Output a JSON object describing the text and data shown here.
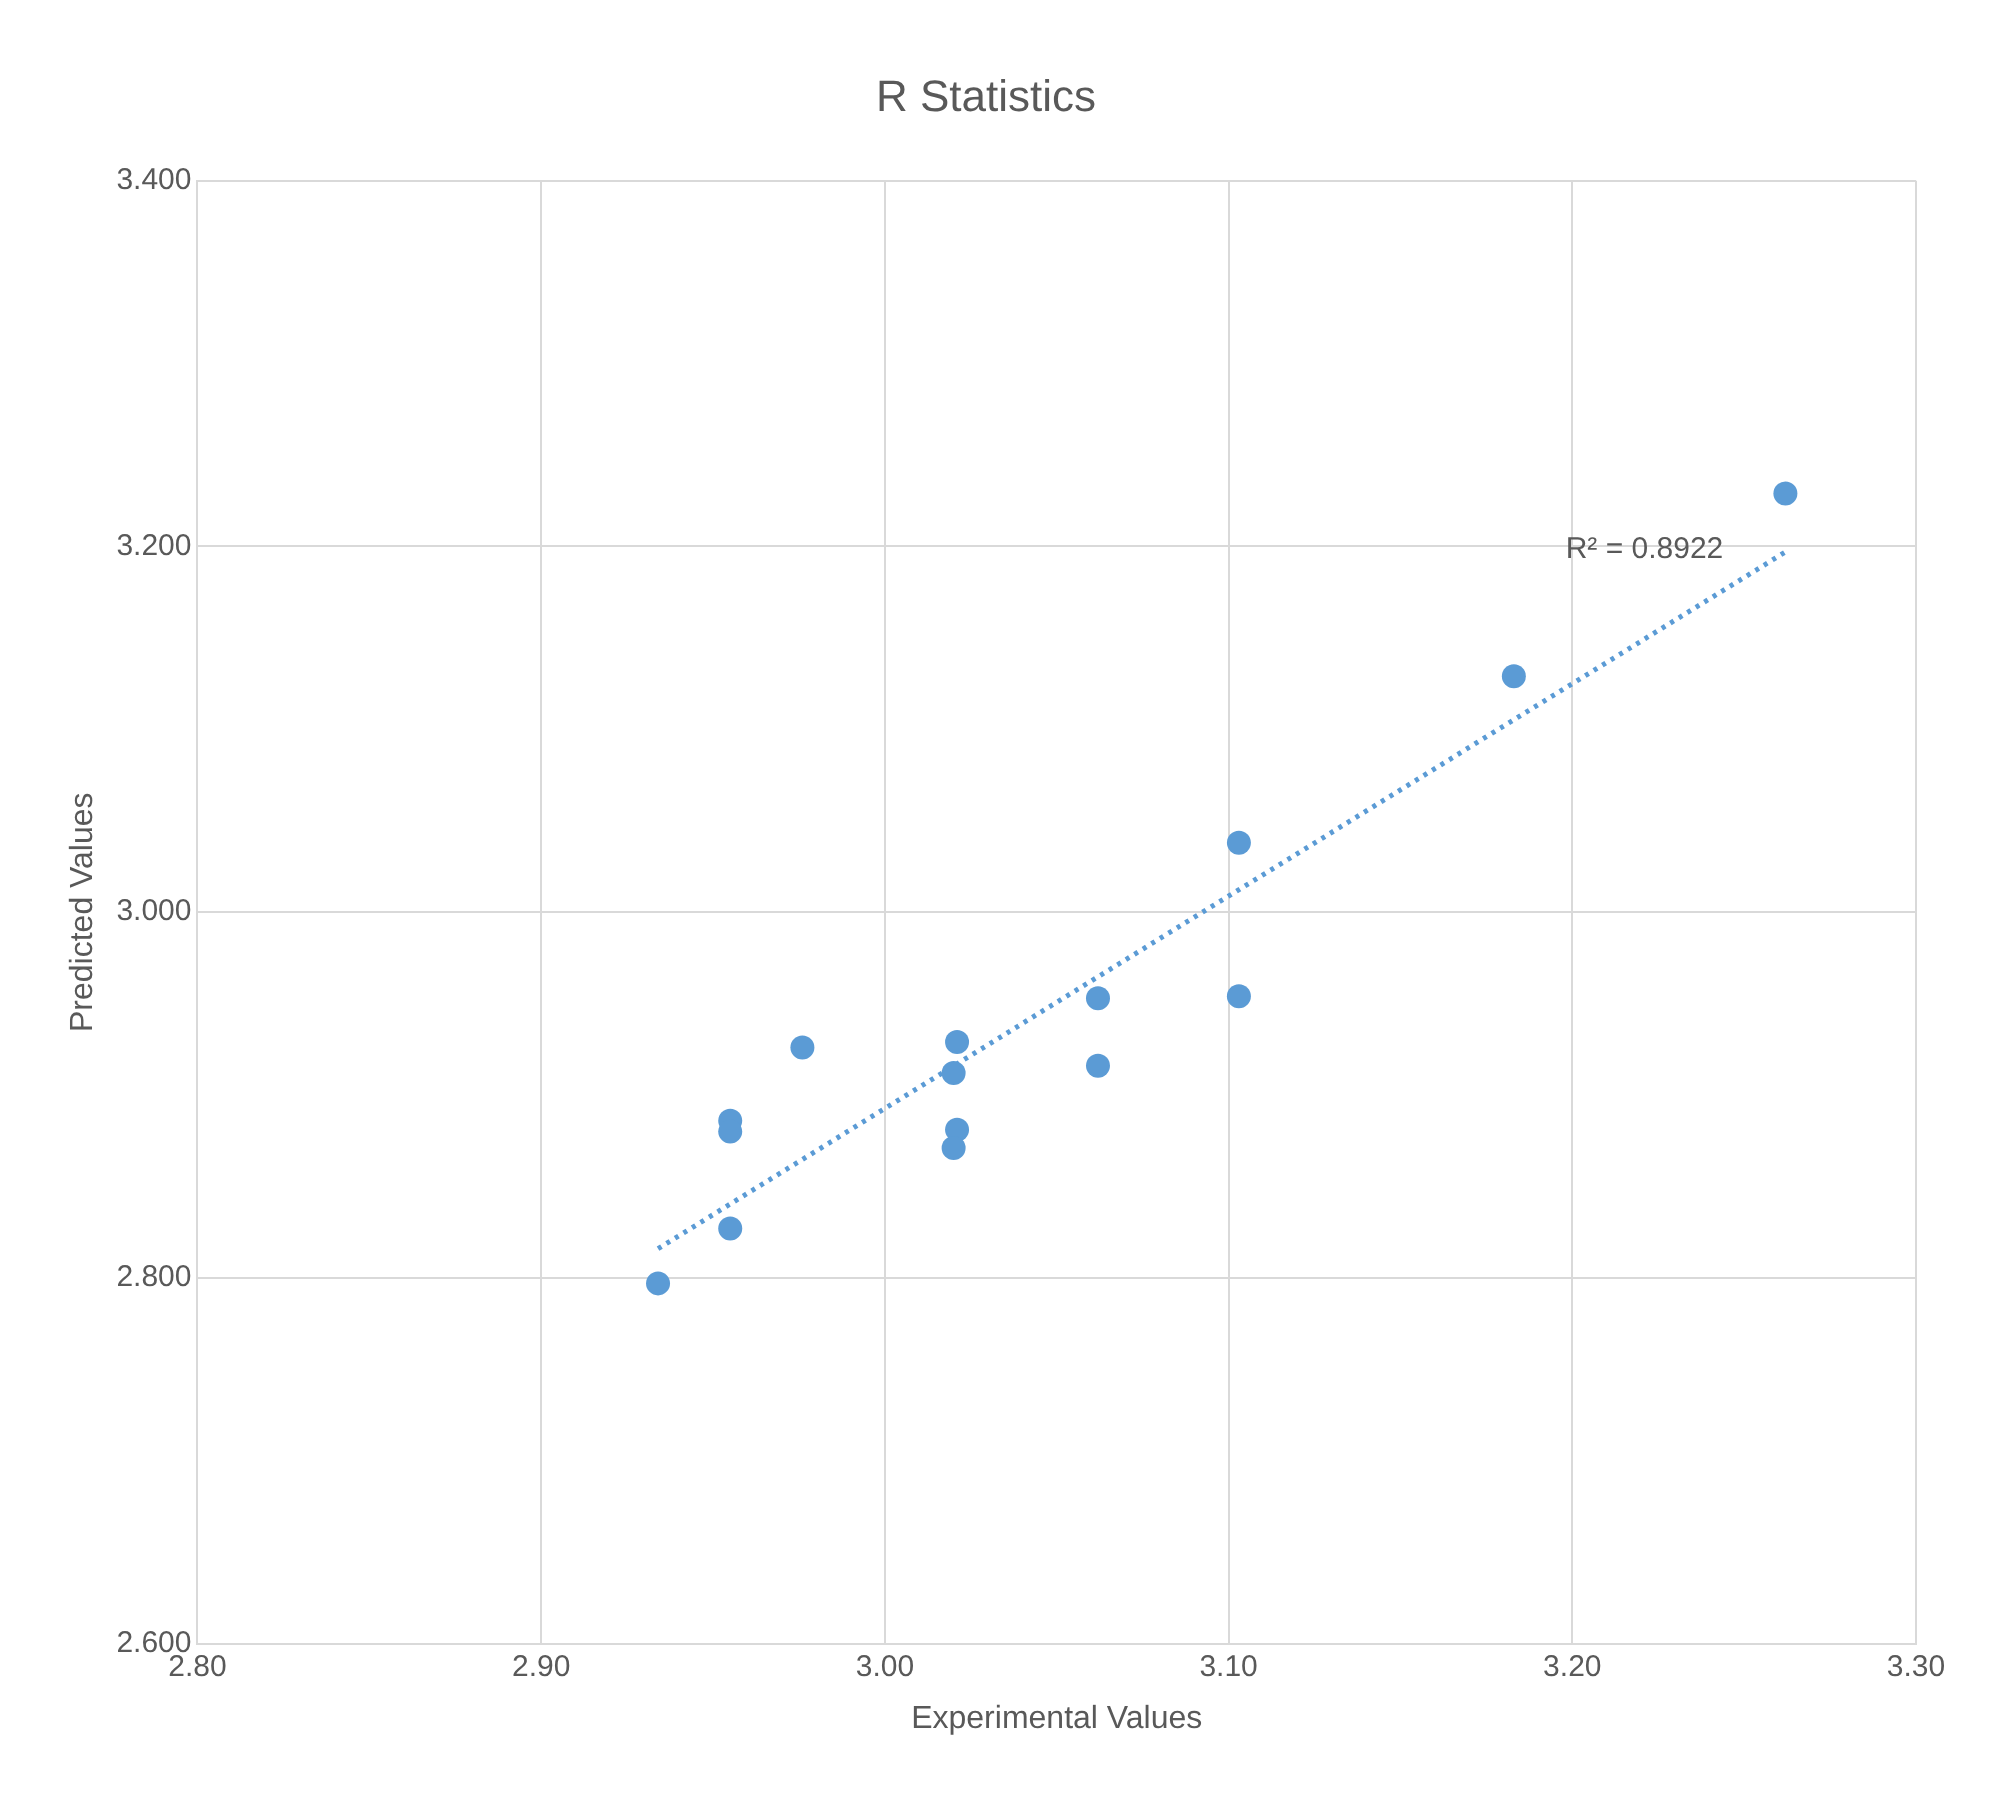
{
  "chart_data": {
    "type": "scatter",
    "title": "R Statistics",
    "xlabel": "Experimental Values",
    "ylabel": "Predicted Values",
    "series": [
      {
        "type": "scatter",
        "color": "#5b9bd5",
        "marker": "circle",
        "x": [
          2.934,
          2.955,
          2.955,
          2.955,
          2.976,
          3.021,
          3.02,
          3.021,
          3.02,
          3.062,
          3.062,
          3.103,
          3.103,
          3.183,
          3.262
        ],
        "values": [
          2.797,
          2.886,
          2.88,
          2.827,
          2.926,
          2.929,
          2.912,
          2.881,
          2.871,
          2.953,
          2.916,
          3.038,
          2.954,
          3.129,
          3.229
        ]
      },
      {
        "type": "line",
        "color": "#5b9bd5",
        "line_style": "dotted",
        "marker": "none",
        "x": [
          2.934,
          3.262
        ],
        "values": [
          2.816,
          3.197
        ]
      }
    ],
    "annotations": [
      "R² = 0.8922"
    ],
    "xlim": [
      2.8,
      3.3
    ],
    "ylim": [
      2.6,
      3.4
    ],
    "xticks": [
      {
        "value": 2.8,
        "label": "2.80"
      },
      {
        "value": 2.9,
        "label": "2.90"
      },
      {
        "value": 3.0,
        "label": "3.00"
      },
      {
        "value": 3.1,
        "label": "3.10"
      },
      {
        "value": 3.2,
        "label": "3.20"
      },
      {
        "value": 3.3,
        "label": "3.30"
      }
    ],
    "yticks": [
      {
        "value": 2.6,
        "label": "2.600"
      },
      {
        "value": 2.8,
        "label": "2.800"
      },
      {
        "value": 3.0,
        "label": "3.000"
      },
      {
        "value": 3.2,
        "label": "3.200"
      },
      {
        "value": 3.4,
        "label": "3.400"
      }
    ],
    "grid": true,
    "legend": false
  }
}
